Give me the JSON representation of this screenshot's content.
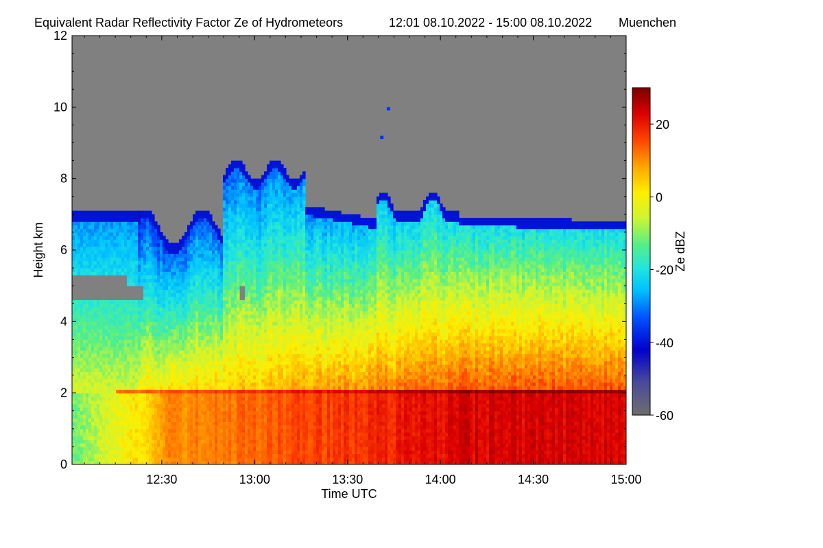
{
  "chart_data": {
    "type": "heatmap",
    "title": "Equivalent Radar Reflectivity Factor Ze of Hydrometeors",
    "time_range": "12:01 08.10.2022 - 15:00 08.10.2022",
    "location": "Muenchen",
    "xlabel": "Time UTC",
    "ylabel": "Height km",
    "x_ticks": [
      "12:30",
      "13:00",
      "13:30",
      "14:00",
      "14:30",
      "15:00"
    ],
    "x_tick_hours": [
      12.5,
      13.0,
      13.5,
      14.0,
      14.5,
      15.0
    ],
    "xlim_hours": [
      12.0167,
      15.0
    ],
    "y_ticks": [
      0,
      2,
      4,
      6,
      8,
      10,
      12
    ],
    "ylim": [
      0,
      12
    ],
    "colorbar": {
      "label": "Ze dBZ",
      "ticks": [
        20,
        0,
        -20,
        -40,
        -60
      ],
      "range": [
        -60,
        30
      ]
    },
    "no_signal_color": "#808080",
    "features": {
      "bright_band_height_km": 2.0,
      "precipitation_top_km": 4.5,
      "cloud_top_km": 7.0,
      "max_echo_top_km": 8.6,
      "isolated_echo_top_km": 10.0
    }
  }
}
